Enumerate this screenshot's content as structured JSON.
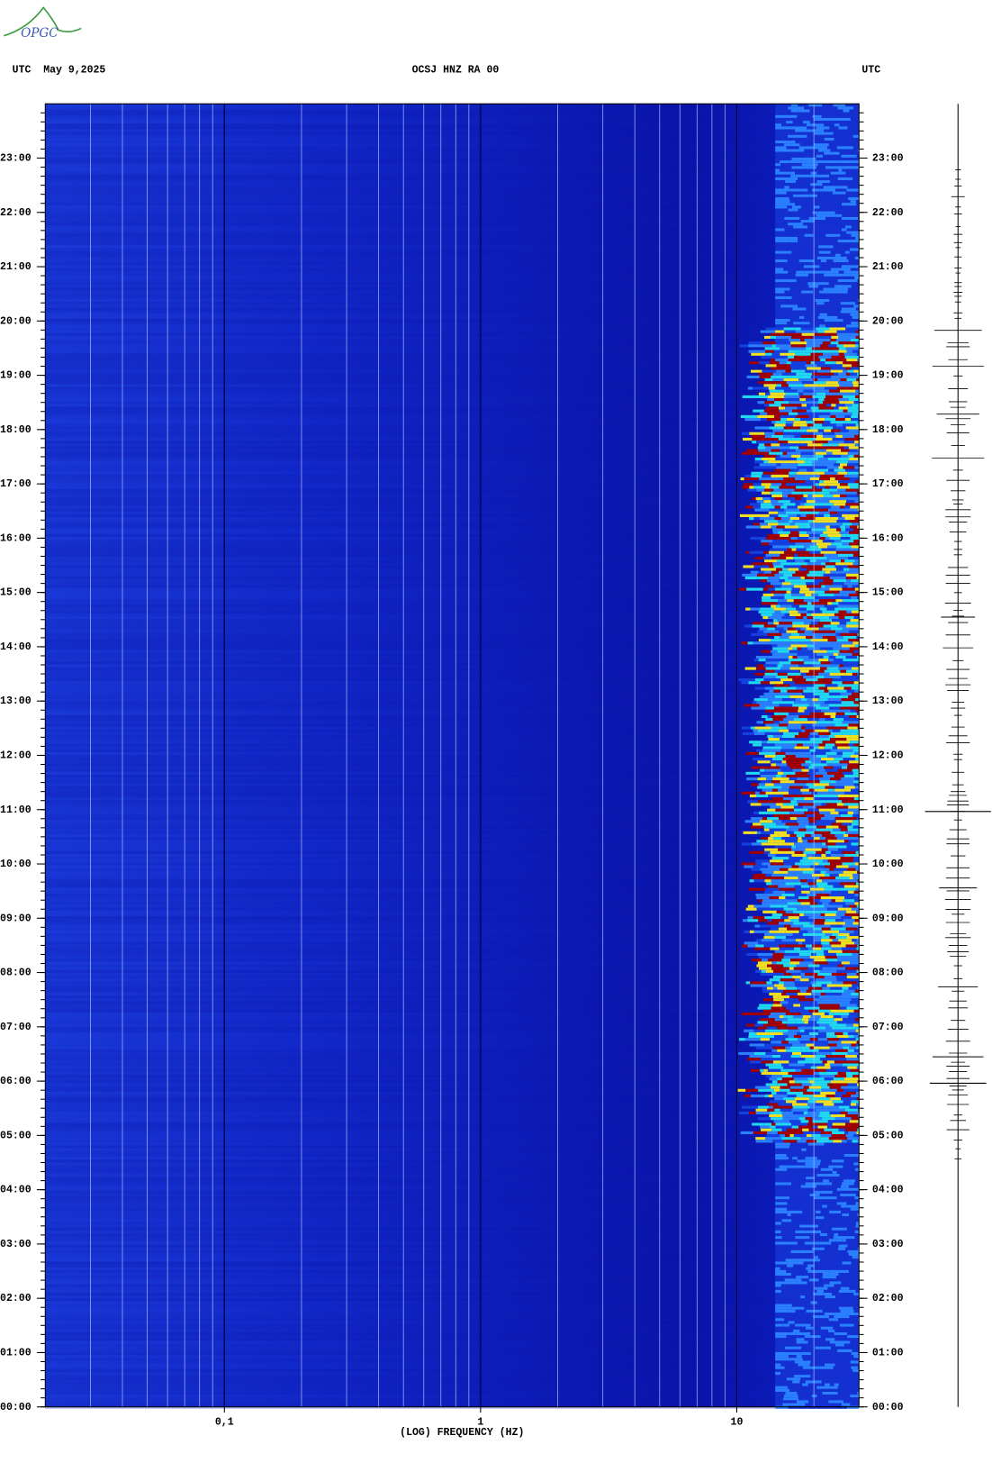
{
  "chart_data": {
    "type": "spectrogram",
    "logo": "OPGC",
    "title_left": "UTC  May 9,2025",
    "title": "OCSJ HNZ RA 00",
    "title_right": "UTC",
    "xlabel": "(LOG) FREQUENCY (HZ)",
    "xscale": "log",
    "xlim": [
      0.02,
      30
    ],
    "xticks": [
      {
        "value": 0.1,
        "label": "0,1"
      },
      1,
      10
    ],
    "ylim": [
      0,
      24
    ],
    "yticks": [
      {
        "value": 0,
        "label": "00:00"
      },
      {
        "value": 1,
        "label": "01:00"
      },
      {
        "value": 2,
        "label": "02:00"
      },
      {
        "value": 3,
        "label": "03:00"
      },
      {
        "value": 4,
        "label": "04:00"
      },
      {
        "value": 5,
        "label": "05:00"
      },
      {
        "value": 6,
        "label": "06:00"
      },
      {
        "value": 7,
        "label": "07:00"
      },
      {
        "value": 8,
        "label": "08:00"
      },
      {
        "value": 9,
        "label": "09:00"
      },
      {
        "value": 10,
        "label": "10:00"
      },
      {
        "value": 11,
        "label": "11:00"
      },
      {
        "value": 12,
        "label": "12:00"
      },
      {
        "value": 13,
        "label": "13:00"
      },
      {
        "value": 14,
        "label": "14:00"
      },
      {
        "value": 15,
        "label": "15:00"
      },
      {
        "value": 16,
        "label": "16:00"
      },
      {
        "value": 17,
        "label": "17:00"
      },
      {
        "value": 18,
        "label": "18:00"
      },
      {
        "value": 19,
        "label": "19:00"
      },
      {
        "value": 20,
        "label": "20:00"
      },
      {
        "value": 21,
        "label": "21:00"
      },
      {
        "value": 22,
        "label": "22:00"
      },
      {
        "value": 23,
        "label": "23:00"
      }
    ]
  }
}
